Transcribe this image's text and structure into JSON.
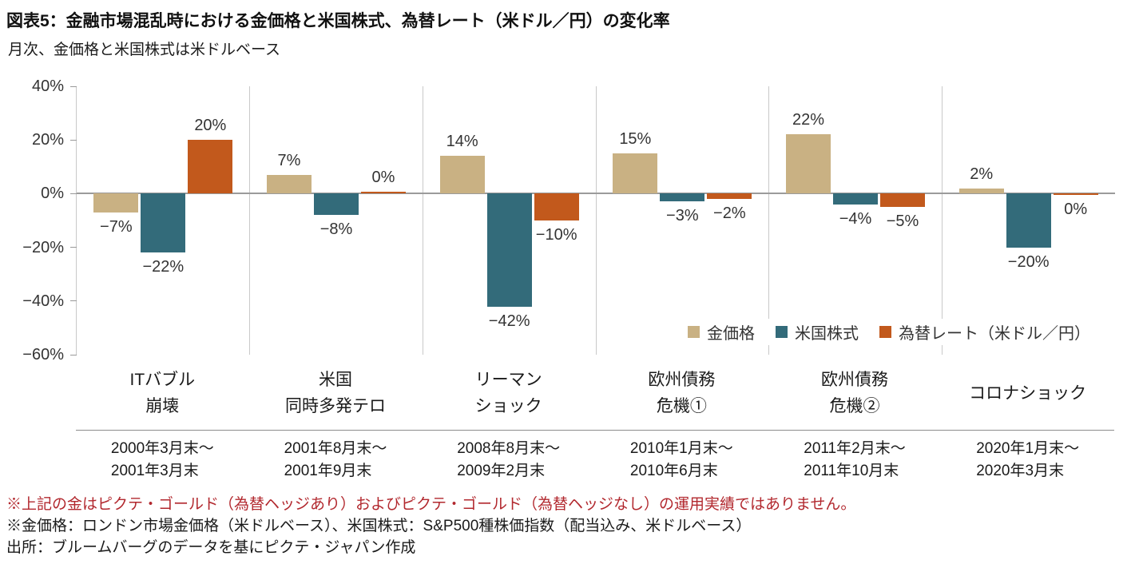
{
  "header": {
    "title": "図表5：金融市場混乱時における金価格と米国株式、為替レート（米ドル／円）の変化率",
    "subtitle": "月次、金価格と米国株式は米ドルベース"
  },
  "chart_data": {
    "type": "bar",
    "ylim": [
      -60,
      40
    ],
    "yticks": [
      40,
      20,
      0,
      -20,
      -40,
      -60
    ],
    "ytick_labels": [
      "40%",
      "20%",
      "0%",
      "−20%",
      "−40%",
      "−60%"
    ],
    "grid": "vertical group separators and zero line only",
    "legend_position": "inside bottom-right",
    "categories": [
      {
        "label": "ITバブル\n崩壊",
        "period": "2000年3月末～\n2001年3月末"
      },
      {
        "label": "米国\n同時多発テロ",
        "period": "2001年8月末～\n2001年9月末"
      },
      {
        "label": "リーマン\nショック",
        "period": "2008年8月末～\n2009年2月末"
      },
      {
        "label": "欧州債務\n危機①",
        "period": "2010年1月末～\n2010年6月末"
      },
      {
        "label": "欧州債務\n危機②",
        "period": "2011年2月末～\n2011年10月末"
      },
      {
        "label": "コロナショック",
        "period": "2020年1月末～\n2020年3月末"
      }
    ],
    "series": [
      {
        "name": "金価格",
        "key": "gold",
        "color": "#c9b183",
        "values": [
          -7,
          7,
          14,
          15,
          22,
          2
        ],
        "labels": [
          "−7%",
          "7%",
          "14%",
          "15%",
          "22%",
          "2%"
        ]
      },
      {
        "name": "米国株式",
        "key": "us-equity",
        "color": "#336b7a",
        "values": [
          -22,
          -8,
          -42,
          -3,
          -4,
          -20
        ],
        "labels": [
          "−22%",
          "−8%",
          "−42%",
          "−3%",
          "−4%",
          "−20%"
        ]
      },
      {
        "name": "為替レート（米ドル／円）",
        "key": "fx-rate",
        "color": "#c2591c",
        "values": [
          20,
          0.4,
          -10,
          -2,
          -5,
          -0.4
        ],
        "labels": [
          "20%",
          "0%",
          "−10%",
          "−2%",
          "−5%",
          "0%"
        ]
      }
    ]
  },
  "footnotes": [
    {
      "text": "※上記の金はピクテ・ゴールド（為替ヘッジあり）およびピクテ・ゴールド（為替ヘッジなし）の運用実績ではありません。",
      "color": "#b2282e"
    },
    {
      "text": "※金価格：ロンドン市場金価格（米ドルベース）、米国株式：S&P500種株価指数（配当込み、米ドルベース）",
      "color": "#1a1a1a"
    },
    {
      "text": "出所：ブルームバーグのデータを基にピクテ・ジャパン作成",
      "color": "#1a1a1a"
    }
  ]
}
